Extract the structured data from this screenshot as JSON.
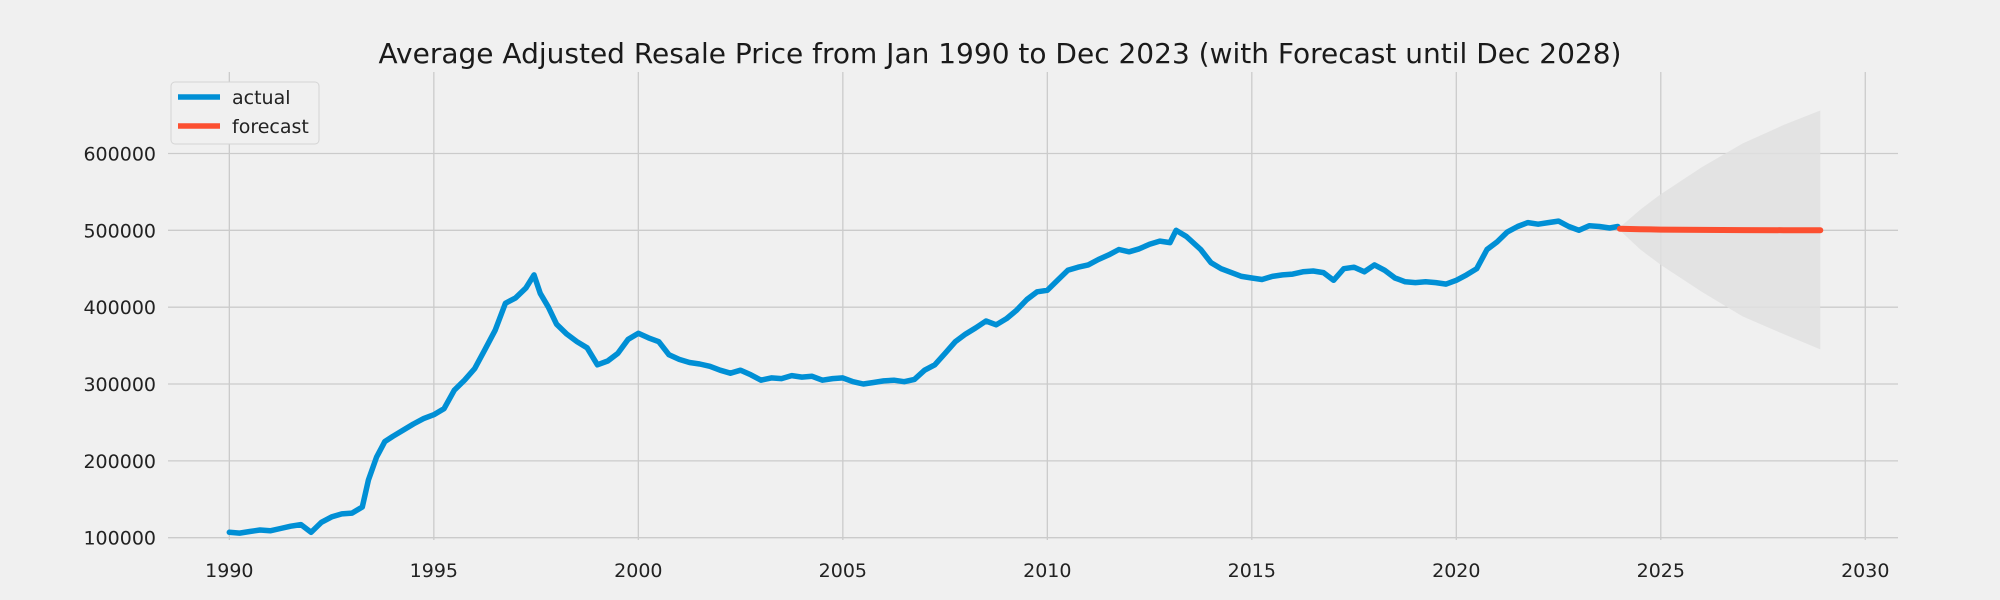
{
  "chart_data": {
    "type": "line",
    "title": "Average Adjusted Resale Price from Jan 1990 to Dec 2023 (with Forecast until Dec 2028)",
    "xlabel": "",
    "ylabel": "",
    "xlim": [
      1988.5,
      2030.8
    ],
    "ylim": [
      97000,
      680000
    ],
    "x_ticks": [
      1990,
      1995,
      2000,
      2005,
      2010,
      2015,
      2020,
      2025,
      2030
    ],
    "y_ticks": [
      100000,
      200000,
      300000,
      400000,
      500000,
      600000
    ],
    "grid": true,
    "legend": "top-left",
    "series": [
      {
        "name": "actual",
        "color": "#008fd5",
        "points": [
          [
            1990.0,
            107000
          ],
          [
            1990.25,
            106000
          ],
          [
            1990.5,
            108000
          ],
          [
            1990.75,
            110000
          ],
          [
            1991.0,
            109000
          ],
          [
            1991.25,
            112000
          ],
          [
            1991.5,
            115000
          ],
          [
            1991.75,
            117000
          ],
          [
            1992.0,
            107000
          ],
          [
            1992.25,
            120000
          ],
          [
            1992.5,
            127000
          ],
          [
            1992.75,
            131000
          ],
          [
            1993.0,
            132000
          ],
          [
            1993.25,
            140000
          ],
          [
            1993.4,
            175000
          ],
          [
            1993.6,
            205000
          ],
          [
            1993.8,
            225000
          ],
          [
            1994.0,
            232000
          ],
          [
            1994.25,
            240000
          ],
          [
            1994.5,
            248000
          ],
          [
            1994.75,
            255000
          ],
          [
            1995.0,
            260000
          ],
          [
            1995.25,
            268000
          ],
          [
            1995.5,
            292000
          ],
          [
            1995.75,
            305000
          ],
          [
            1996.0,
            320000
          ],
          [
            1996.25,
            345000
          ],
          [
            1996.5,
            370000
          ],
          [
            1996.75,
            405000
          ],
          [
            1997.0,
            412000
          ],
          [
            1997.25,
            425000
          ],
          [
            1997.45,
            442000
          ],
          [
            1997.6,
            418000
          ],
          [
            1997.8,
            400000
          ],
          [
            1998.0,
            378000
          ],
          [
            1998.25,
            365000
          ],
          [
            1998.5,
            355000
          ],
          [
            1998.75,
            347000
          ],
          [
            1999.0,
            325000
          ],
          [
            1999.25,
            330000
          ],
          [
            1999.5,
            340000
          ],
          [
            1999.75,
            358000
          ],
          [
            2000.0,
            366000
          ],
          [
            2000.25,
            360000
          ],
          [
            2000.5,
            355000
          ],
          [
            2000.75,
            338000
          ],
          [
            2001.0,
            332000
          ],
          [
            2001.25,
            328000
          ],
          [
            2001.5,
            326000
          ],
          [
            2001.75,
            323000
          ],
          [
            2002.0,
            318000
          ],
          [
            2002.25,
            314000
          ],
          [
            2002.5,
            318000
          ],
          [
            2002.75,
            312000
          ],
          [
            2003.0,
            305000
          ],
          [
            2003.25,
            308000
          ],
          [
            2003.5,
            307000
          ],
          [
            2003.75,
            311000
          ],
          [
            2004.0,
            309000
          ],
          [
            2004.25,
            310000
          ],
          [
            2004.5,
            305000
          ],
          [
            2004.75,
            307000
          ],
          [
            2005.0,
            308000
          ],
          [
            2005.25,
            303000
          ],
          [
            2005.5,
            300000
          ],
          [
            2005.75,
            302000
          ],
          [
            2006.0,
            304000
          ],
          [
            2006.25,
            305000
          ],
          [
            2006.5,
            303000
          ],
          [
            2006.75,
            306000
          ],
          [
            2007.0,
            318000
          ],
          [
            2007.25,
            325000
          ],
          [
            2007.5,
            340000
          ],
          [
            2007.75,
            355000
          ],
          [
            2008.0,
            365000
          ],
          [
            2008.25,
            373000
          ],
          [
            2008.5,
            382000
          ],
          [
            2008.75,
            377000
          ],
          [
            2009.0,
            385000
          ],
          [
            2009.25,
            396000
          ],
          [
            2009.5,
            410000
          ],
          [
            2009.75,
            420000
          ],
          [
            2010.0,
            422000
          ],
          [
            2010.25,
            435000
          ],
          [
            2010.5,
            448000
          ],
          [
            2010.75,
            452000
          ],
          [
            2011.0,
            455000
          ],
          [
            2011.25,
            462000
          ],
          [
            2011.5,
            468000
          ],
          [
            2011.75,
            475000
          ],
          [
            2012.0,
            472000
          ],
          [
            2012.25,
            476000
          ],
          [
            2012.5,
            482000
          ],
          [
            2012.75,
            486000
          ],
          [
            2013.0,
            484000
          ],
          [
            2013.15,
            500000
          ],
          [
            2013.4,
            492000
          ],
          [
            2013.75,
            475000
          ],
          [
            2014.0,
            458000
          ],
          [
            2014.25,
            450000
          ],
          [
            2014.5,
            445000
          ],
          [
            2014.75,
            440000
          ],
          [
            2015.0,
            438000
          ],
          [
            2015.25,
            436000
          ],
          [
            2015.5,
            440000
          ],
          [
            2015.75,
            442000
          ],
          [
            2016.0,
            443000
          ],
          [
            2016.25,
            446000
          ],
          [
            2016.5,
            447000
          ],
          [
            2016.75,
            445000
          ],
          [
            2017.0,
            435000
          ],
          [
            2017.25,
            450000
          ],
          [
            2017.5,
            452000
          ],
          [
            2017.75,
            446000
          ],
          [
            2018.0,
            455000
          ],
          [
            2018.25,
            448000
          ],
          [
            2018.5,
            438000
          ],
          [
            2018.75,
            433000
          ],
          [
            2019.0,
            432000
          ],
          [
            2019.25,
            433000
          ],
          [
            2019.5,
            432000
          ],
          [
            2019.75,
            430000
          ],
          [
            2020.0,
            435000
          ],
          [
            2020.25,
            442000
          ],
          [
            2020.5,
            450000
          ],
          [
            2020.75,
            475000
          ],
          [
            2021.0,
            485000
          ],
          [
            2021.25,
            498000
          ],
          [
            2021.5,
            505000
          ],
          [
            2021.75,
            510000
          ],
          [
            2022.0,
            508000
          ],
          [
            2022.25,
            510000
          ],
          [
            2022.5,
            512000
          ],
          [
            2022.75,
            505000
          ],
          [
            2023.0,
            500000
          ],
          [
            2023.25,
            506000
          ],
          [
            2023.5,
            505000
          ],
          [
            2023.75,
            503000
          ],
          [
            2023.95,
            505000
          ]
        ]
      },
      {
        "name": "forecast",
        "color": "#fc4f30",
        "points": [
          [
            2024.0,
            502000
          ],
          [
            2024.5,
            501500
          ],
          [
            2025.0,
            501000
          ],
          [
            2026.0,
            500500
          ],
          [
            2027.0,
            500300
          ],
          [
            2028.0,
            500200
          ],
          [
            2028.9,
            500200
          ]
        ],
        "interval_lower": [
          [
            2024.0,
            500000
          ],
          [
            2024.5,
            475000
          ],
          [
            2025.0,
            455000
          ],
          [
            2026.0,
            420000
          ],
          [
            2027.0,
            388000
          ],
          [
            2028.0,
            365000
          ],
          [
            2028.9,
            345000
          ]
        ],
        "interval_upper": [
          [
            2024.0,
            504000
          ],
          [
            2024.5,
            527000
          ],
          [
            2025.0,
            547000
          ],
          [
            2026.0,
            582000
          ],
          [
            2027.0,
            613000
          ],
          [
            2028.0,
            637000
          ],
          [
            2028.9,
            656000
          ]
        ],
        "interval_color": "#e0e0e0"
      }
    ]
  }
}
